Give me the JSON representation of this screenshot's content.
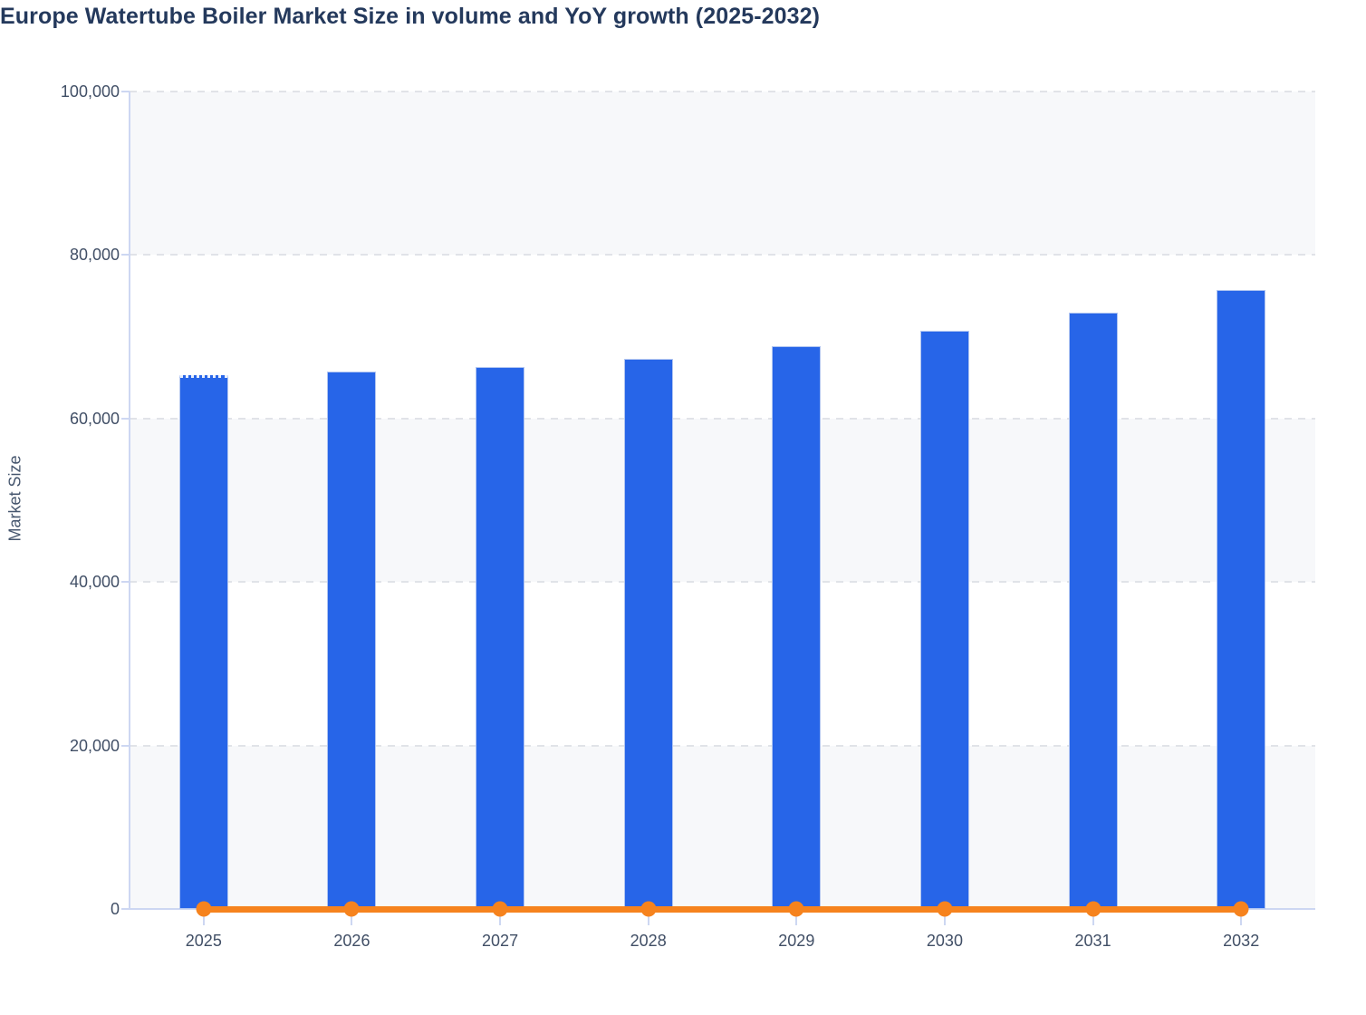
{
  "chart": {
    "title": "Europe Watertube Boiler Market Size in volume and YoY growth (2025-2032)",
    "ylabel": "Market Size"
  },
  "colors": {
    "bar": "#2765e8",
    "line": "#f6831e",
    "title_text": "#24395c",
    "axis_text": "#414f66",
    "axis_line": "#cdd7f2",
    "gridline": "#e1e3e8",
    "band": "#f7f8fa",
    "background": "#ffffff"
  },
  "chart_data": {
    "type": "bar",
    "title": "Europe Watertube Boiler Market Size in volume and YoY growth (2025-2032)",
    "xlabel": "",
    "ylabel": "Market Size",
    "categories": [
      "2025",
      "2026",
      "2027",
      "2028",
      "2029",
      "2030",
      "2031",
      "2032"
    ],
    "series": [
      {
        "name": "Market Size",
        "type": "bar",
        "color": "#2765e8",
        "values": [
          65300,
          65700,
          66300,
          67300,
          68800,
          70700,
          73000,
          75700
        ]
      },
      {
        "name": "YoY growth",
        "type": "line",
        "color": "#f6831e",
        "values": [
          0,
          0,
          0,
          0,
          0,
          0,
          0,
          0
        ]
      }
    ],
    "ylim": [
      0,
      100000
    ],
    "yticks": [
      0,
      20000,
      40000,
      60000,
      80000,
      100000
    ],
    "ytick_labels": [
      "0",
      "20,000",
      "40,000",
      "60,000",
      "80,000",
      "100,000"
    ],
    "grid": "horizontal dashed",
    "plot_bands": "alternating gray/white between gridlines, gray from top",
    "legend": "none"
  }
}
